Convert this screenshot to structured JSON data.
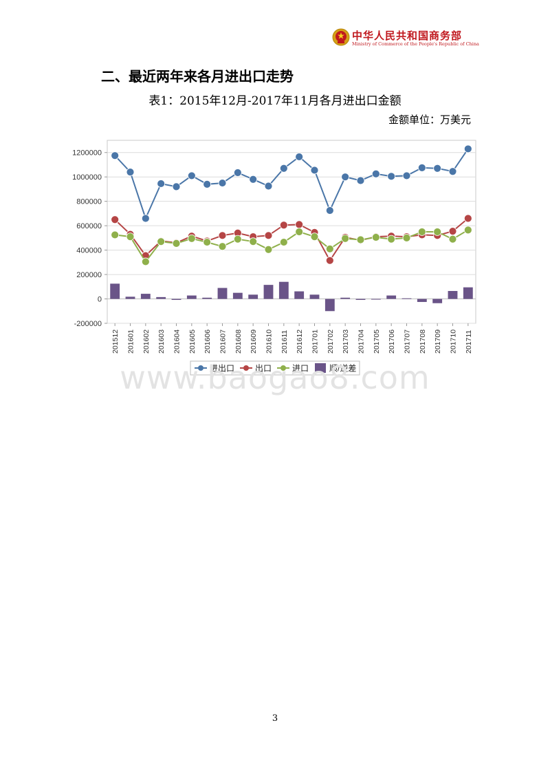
{
  "header": {
    "org_cn": "中华人民共和国商务部",
    "org_en": "Ministry of Commerce of the People's Republic of China",
    "emblem_icon": "national-emblem-icon",
    "color": "#c0181e"
  },
  "section_title": "二、最近两年来各月进出口走势",
  "table_title": "表1：2015年12月-2017年11月各月进出口金额",
  "unit_label": "金额单位：万美元",
  "watermark": "www.baogao8.com",
  "page_number": "3",
  "chart_data": {
    "type": "line",
    "categories": [
      "201512",
      "201601",
      "201602",
      "201603",
      "201604",
      "201605",
      "201606",
      "201607",
      "201608",
      "201609",
      "201610",
      "201611",
      "201612",
      "201701",
      "201702",
      "201703",
      "201704",
      "201705",
      "201706",
      "201707",
      "201708",
      "201709",
      "201710",
      "201711"
    ],
    "series": [
      {
        "name": "进出口",
        "type": "line",
        "color": "#4a76a8",
        "values": [
          1175000,
          1040000,
          660000,
          945000,
          920000,
          1010000,
          940000,
          950000,
          1035000,
          980000,
          925000,
          1070000,
          1165000,
          1055000,
          725000,
          1000000,
          970000,
          1025000,
          1005000,
          1010000,
          1075000,
          1070000,
          1045000,
          1230000
        ]
      },
      {
        "name": "出口",
        "type": "line",
        "color": "#b54545",
        "values": [
          650000,
          530000,
          355000,
          475000,
          460000,
          515000,
          475000,
          520000,
          540000,
          510000,
          520000,
          605000,
          610000,
          545000,
          315000,
          505000,
          480000,
          510000,
          515000,
          510000,
          525000,
          520000,
          555000,
          660000
        ]
      },
      {
        "name": "进口",
        "type": "line",
        "color": "#8fb04b",
        "values": [
          525000,
          510000,
          305000,
          470000,
          455000,
          495000,
          465000,
          430000,
          490000,
          470000,
          405000,
          465000,
          550000,
          510000,
          410000,
          495000,
          485000,
          505000,
          490000,
          500000,
          550000,
          550000,
          490000,
          565000
        ]
      },
      {
        "name": "顺/逆差",
        "type": "bar",
        "color": "#6a5488",
        "values": [
          125000,
          18000,
          42000,
          15000,
          -8000,
          28000,
          10000,
          90000,
          50000,
          35000,
          115000,
          140000,
          62000,
          35000,
          -100000,
          10000,
          -8000,
          -5000,
          28000,
          5000,
          -25000,
          -35000,
          65000,
          95000
        ]
      }
    ],
    "ylim": [
      -200000,
      1300000
    ],
    "yticks": [
      -200000,
      0,
      200000,
      400000,
      600000,
      800000,
      1000000,
      1200000
    ],
    "grid": true,
    "legend": "bottom"
  }
}
